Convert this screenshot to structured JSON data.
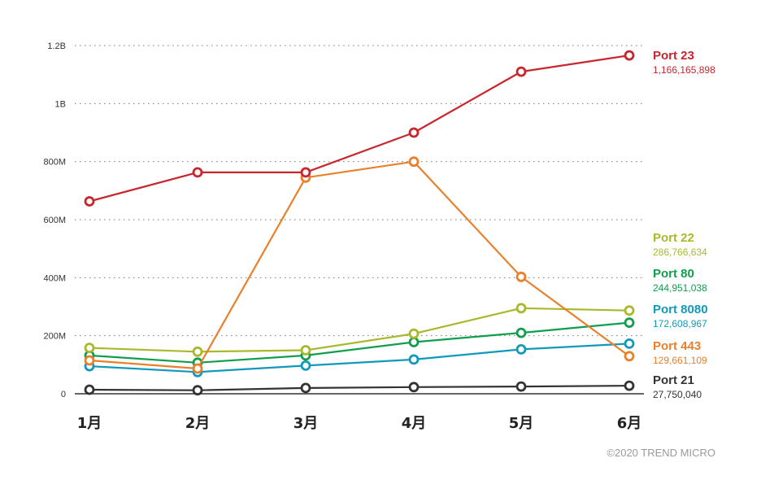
{
  "chart_data": {
    "type": "line",
    "categories": [
      "1月",
      "2月",
      "3月",
      "4月",
      "5月",
      "6月"
    ],
    "ylim": [
      0,
      1200000000
    ],
    "yticks": [
      {
        "value": 0,
        "label": "0"
      },
      {
        "value": 200000000,
        "label": "200M"
      },
      {
        "value": 400000000,
        "label": "400M"
      },
      {
        "value": 600000000,
        "label": "600M"
      },
      {
        "value": 800000000,
        "label": "800M"
      },
      {
        "value": 1000000000,
        "label": "1B"
      },
      {
        "value": 1200000000,
        "label": "1.2B"
      }
    ],
    "grid": "horizontal-dotted",
    "legend": "right, inline labels at series ends",
    "series": [
      {
        "name": "Port 23",
        "end_label": "1,166,165,898",
        "color": "#c8262c",
        "values": [
          663000000,
          763000000,
          763000000,
          900000000,
          1110000000,
          1166165898
        ]
      },
      {
        "name": "Port 22",
        "end_label": "286,766,634",
        "color": "#a9b92b",
        "values": [
          158000000,
          145000000,
          150000000,
          207000000,
          295000000,
          286766634
        ]
      },
      {
        "name": "Port 80",
        "end_label": "244,951,038",
        "color": "#109e4d",
        "values": [
          132000000,
          107000000,
          132000000,
          178000000,
          210000000,
          244951038
        ]
      },
      {
        "name": "Port 8080",
        "end_label": "172,608,967",
        "color": "#1199bb",
        "values": [
          95000000,
          75000000,
          97000000,
          118000000,
          153000000,
          172608967
        ]
      },
      {
        "name": "Port 443",
        "end_label": "129,661,109",
        "color": "#e8802c",
        "values": [
          115000000,
          87000000,
          745000000,
          800000000,
          403000000,
          129661109
        ]
      },
      {
        "name": "Port 21",
        "end_label": "27,750,040",
        "color": "#333333",
        "values": [
          14000000,
          12000000,
          20000000,
          23000000,
          25000000,
          27750040
        ]
      }
    ]
  },
  "credit": "©2020 TREND MICRO"
}
